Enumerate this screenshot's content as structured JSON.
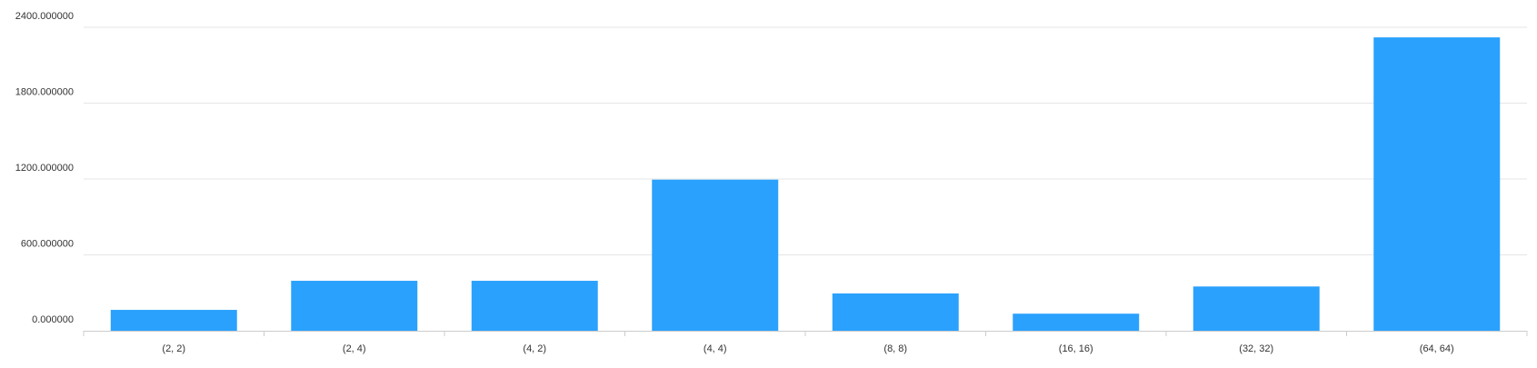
{
  "chart_data": {
    "type": "bar",
    "categories": [
      "(2, 2)",
      "(2, 4)",
      "(4, 2)",
      "(4, 4)",
      "(8, 8)",
      "(16, 16)",
      "(32, 32)",
      "(64, 64)"
    ],
    "values": [
      165,
      395,
      395,
      1195,
      295,
      135,
      350,
      2320
    ],
    "ylim": [
      0,
      2400
    ],
    "yticks": [
      0,
      600,
      1200,
      1800,
      2400
    ],
    "ytick_labels": [
      "0.000000",
      "600.000000",
      "1200.000000",
      "1800.000000",
      "2400.000000"
    ],
    "grid": true,
    "colors": {
      "bar": "#2aa1fd",
      "grid": "#e6e6e6",
      "axis": "#cccccc",
      "text": "#333333"
    }
  }
}
